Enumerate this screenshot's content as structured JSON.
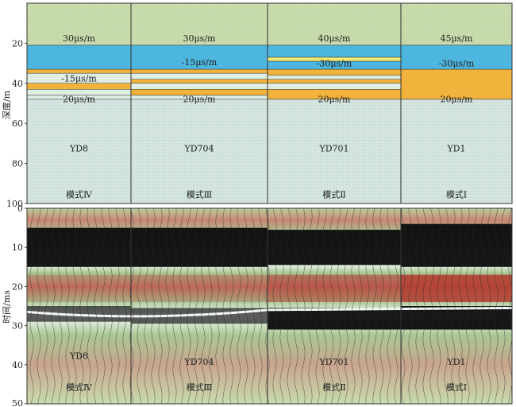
{
  "top_panel": {
    "y_axis_label": "深度/m",
    "y_ticks": [
      "20",
      "40",
      "60",
      "80",
      "100"
    ],
    "y_tick_values": [
      20,
      40,
      60,
      80,
      100
    ],
    "depth_range": [
      0,
      100
    ],
    "columns": [
      {
        "well": "YD8",
        "mode": "模式Ⅳ",
        "upper_velocity": "30μs/m",
        "middle_velocity": "-15μs/m",
        "lower_velocity": "20μs/m",
        "layers": [
          {
            "top": 0,
            "bottom": 21,
            "kind": "green"
          },
          {
            "top": 21,
            "bottom": 33,
            "kind": "blue"
          },
          {
            "top": 33,
            "bottom": 35,
            "kind": "orange"
          },
          {
            "top": 35,
            "bottom": 40,
            "kind": "pale"
          },
          {
            "top": 40,
            "bottom": 43,
            "kind": "orange"
          },
          {
            "top": 43,
            "bottom": 46,
            "kind": "pale"
          },
          {
            "top": 46,
            "bottom": 48,
            "kind": "pale"
          },
          {
            "top": 48,
            "bottom": 100,
            "kind": "grid"
          }
        ]
      },
      {
        "well": "YD704",
        "mode": "模式Ⅲ",
        "upper_velocity": "30μs/m",
        "middle_velocity": "-15μs/m",
        "lower_velocity": "20μs/m",
        "layers": [
          {
            "top": 0,
            "bottom": 21,
            "kind": "green"
          },
          {
            "top": 21,
            "bottom": 33,
            "kind": "blue"
          },
          {
            "top": 33,
            "bottom": 35,
            "kind": "orange"
          },
          {
            "top": 35,
            "bottom": 38,
            "kind": "pale"
          },
          {
            "top": 38,
            "bottom": 40,
            "kind": "orange"
          },
          {
            "top": 40,
            "bottom": 43,
            "kind": "pale"
          },
          {
            "top": 43,
            "bottom": 46,
            "kind": "orange"
          },
          {
            "top": 46,
            "bottom": 48,
            "kind": "pale"
          },
          {
            "top": 48,
            "bottom": 100,
            "kind": "grid"
          }
        ]
      },
      {
        "well": "YD701",
        "mode": "模式Ⅱ",
        "upper_velocity": "40μs/m",
        "middle_velocity": "-30μs/m",
        "lower_velocity": "20μs/m",
        "layers": [
          {
            "top": 0,
            "bottom": 21,
            "kind": "green"
          },
          {
            "top": 21,
            "bottom": 27,
            "kind": "blue"
          },
          {
            "top": 27,
            "bottom": 29,
            "kind": "yellow"
          },
          {
            "top": 29,
            "bottom": 33,
            "kind": "blue"
          },
          {
            "top": 33,
            "bottom": 36,
            "kind": "orange"
          },
          {
            "top": 36,
            "bottom": 38,
            "kind": "pale"
          },
          {
            "top": 38,
            "bottom": 40,
            "kind": "orange"
          },
          {
            "top": 40,
            "bottom": 43,
            "kind": "pale"
          },
          {
            "top": 43,
            "bottom": 48,
            "kind": "orange"
          },
          {
            "top": 48,
            "bottom": 100,
            "kind": "grid"
          }
        ]
      },
      {
        "well": "YD1",
        "mode": "模式Ⅰ",
        "upper_velocity": "45μs/m",
        "middle_velocity": "-30μs/m",
        "lower_velocity": "20μs/m",
        "layers": [
          {
            "top": 0,
            "bottom": 21,
            "kind": "green"
          },
          {
            "top": 21,
            "bottom": 33,
            "kind": "blue"
          },
          {
            "top": 33,
            "bottom": 48,
            "kind": "orange"
          },
          {
            "top": 48,
            "bottom": 100,
            "kind": "grid"
          }
        ]
      }
    ]
  },
  "bottom_panel": {
    "y_axis_label": "时间/ms",
    "y_ticks": [
      "0",
      "10",
      "20",
      "30",
      "40",
      "50"
    ],
    "y_tick_values": [
      0,
      10,
      20,
      30,
      40,
      50
    ],
    "time_range": [
      0,
      50
    ],
    "columns": [
      {
        "well": "YD8",
        "mode": "模式Ⅳ"
      },
      {
        "well": "YD704",
        "mode": "模式Ⅲ"
      },
      {
        "well": "YD701",
        "mode": "模式Ⅱ"
      },
      {
        "well": "YD1",
        "mode": "模式Ⅰ"
      }
    ]
  },
  "colors": {
    "green": "#c9dcae",
    "blue": "#4db6de",
    "orange": "#f1b33c",
    "yellow": "#f2ea72",
    "pale": "#dfeee3",
    "grid_bg": "#d6e6e1",
    "grid_line": "#a9c7c0",
    "seis_red": "#b33b2f",
    "seis_green": "#a9c894"
  }
}
